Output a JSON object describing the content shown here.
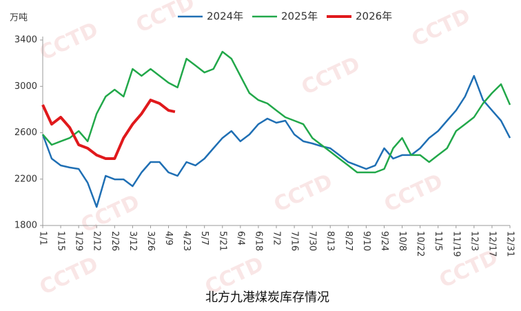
{
  "chart_data": {
    "type": "line",
    "title": "北方九港煤炭库存情况",
    "y_label": "万吨",
    "watermark": "CCTD",
    "xlim": [
      0,
      364
    ],
    "xticks": [
      {
        "value": 0,
        "label": "1/1"
      },
      {
        "value": 14,
        "label": "1/15"
      },
      {
        "value": 28,
        "label": "1/29"
      },
      {
        "value": 42,
        "label": "2/12"
      },
      {
        "value": 56,
        "label": "2/26"
      },
      {
        "value": 70,
        "label": "3/12"
      },
      {
        "value": 84,
        "label": "3/26"
      },
      {
        "value": 98,
        "label": "4/9"
      },
      {
        "value": 112,
        "label": "4/23"
      },
      {
        "value": 126,
        "label": "5/7"
      },
      {
        "value": 140,
        "label": "5/21"
      },
      {
        "value": 154,
        "label": "6/4"
      },
      {
        "value": 168,
        "label": "6/18"
      },
      {
        "value": 182,
        "label": "7/2"
      },
      {
        "value": 196,
        "label": "7/16"
      },
      {
        "value": 210,
        "label": "7/30"
      },
      {
        "value": 224,
        "label": "8/13"
      },
      {
        "value": 238,
        "label": "8/27"
      },
      {
        "value": 252,
        "label": "9/10"
      },
      {
        "value": 266,
        "label": "9/24"
      },
      {
        "value": 280,
        "label": "10/8"
      },
      {
        "value": 294,
        "label": "10/22"
      },
      {
        "value": 308,
        "label": "11/5"
      },
      {
        "value": 322,
        "label": "11/19"
      },
      {
        "value": 336,
        "label": "12/3"
      },
      {
        "value": 350,
        "label": "12/17"
      },
      {
        "value": 364,
        "label": "12/31"
      }
    ],
    "ylim": [
      1800,
      3400
    ],
    "yticks": [
      1800,
      2200,
      2600,
      3000,
      3400
    ],
    "legend": "top",
    "series": [
      {
        "name": "2024年",
        "color": "#1f6fb4",
        "width": 2.5,
        "x": [
          0,
          7,
          14,
          21,
          28,
          35,
          42,
          49,
          56,
          63,
          70,
          77,
          84,
          91,
          98,
          105,
          112,
          119,
          126,
          133,
          140,
          147,
          154,
          161,
          168,
          175,
          182,
          189,
          196,
          203,
          210,
          217,
          224,
          231,
          238,
          245,
          252,
          259,
          266,
          273,
          280,
          287,
          294,
          301,
          308,
          315,
          322,
          329,
          336,
          343,
          350,
          357,
          364
        ],
        "values": [
          2585,
          2377,
          2318,
          2300,
          2288,
          2169,
          1960,
          2228,
          2198,
          2198,
          2139,
          2258,
          2347,
          2347,
          2258,
          2228,
          2347,
          2318,
          2377,
          2466,
          2555,
          2615,
          2526,
          2585,
          2674,
          2722,
          2686,
          2704,
          2585,
          2526,
          2508,
          2484,
          2466,
          2407,
          2347,
          2318,
          2288,
          2318,
          2466,
          2377,
          2407,
          2407,
          2466,
          2555,
          2615,
          2704,
          2793,
          2912,
          3091,
          2882,
          2793,
          2704,
          2555
        ]
      },
      {
        "name": "2025年",
        "color": "#22a84a",
        "width": 2.5,
        "x": [
          0,
          7,
          14,
          21,
          28,
          35,
          42,
          49,
          56,
          63,
          70,
          77,
          84,
          91,
          98,
          105,
          112,
          119,
          126,
          133,
          140,
          147,
          154,
          161,
          168,
          175,
          182,
          189,
          196,
          203,
          210,
          217,
          224,
          231,
          238,
          245,
          252,
          259,
          266,
          273,
          280,
          287,
          294,
          301,
          308,
          315,
          322,
          329,
          336,
          343,
          350,
          357,
          364
        ],
        "values": [
          2585,
          2496,
          2526,
          2555,
          2615,
          2526,
          2764,
          2912,
          2972,
          2912,
          3150,
          3091,
          3150,
          3091,
          3031,
          2991,
          3239,
          3180,
          3120,
          3150,
          3299,
          3239,
          3091,
          2942,
          2882,
          2853,
          2793,
          2734,
          2704,
          2674,
          2555,
          2496,
          2437,
          2377,
          2318,
          2258,
          2258,
          2258,
          2288,
          2466,
          2555,
          2407,
          2407,
          2347,
          2407,
          2466,
          2615,
          2674,
          2734,
          2853,
          2942,
          3019,
          2841
        ]
      },
      {
        "name": "2026年",
        "color": "#e0191c",
        "width": 4,
        "x": [
          0,
          7,
          14,
          21,
          28,
          35,
          42,
          49,
          56,
          63,
          70,
          77,
          84,
          91,
          98,
          103
        ],
        "values": [
          2841,
          2674,
          2734,
          2645,
          2496,
          2466,
          2407,
          2377,
          2377,
          2555,
          2674,
          2764,
          2882,
          2853,
          2793,
          2781
        ]
      }
    ]
  }
}
